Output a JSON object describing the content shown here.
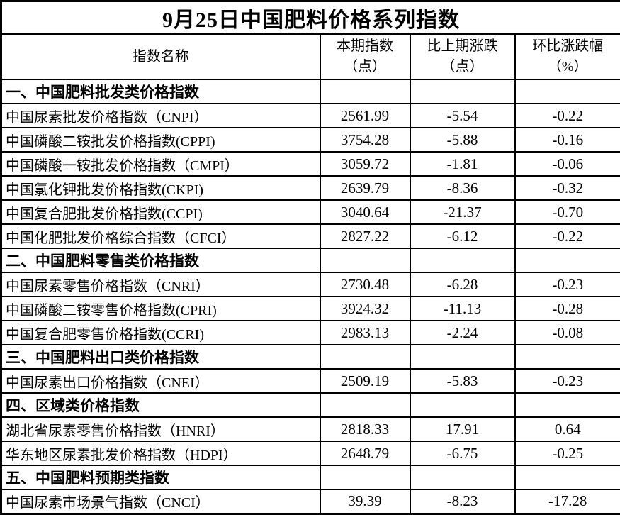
{
  "chart_data": {
    "type": "table",
    "title": "9月25日中国肥料价格系列指数",
    "columns": [
      {
        "label": "指数名称",
        "sub": ""
      },
      {
        "label": "本期指数",
        "sub": "（点）"
      },
      {
        "label": "比上期涨跌",
        "sub": "（点）"
      },
      {
        "label": "环比涨跌幅",
        "sub": "（%）"
      }
    ],
    "rows": [
      {
        "type": "section",
        "name": "一、中国肥料批发类价格指数",
        "current": "",
        "change": "",
        "pct": ""
      },
      {
        "type": "data",
        "name": "中国尿素批发价格指数（CNPI）",
        "current": "2561.99",
        "change": "-5.54",
        "pct": "-0.22"
      },
      {
        "type": "data",
        "name": "中国磷酸二铵批发价格指数(CPPI)",
        "current": "3754.28",
        "change": "-5.88",
        "pct": "-0.16"
      },
      {
        "type": "data",
        "name": "中国磷酸一铵批发价格指数（CMPI）",
        "current": "3059.72",
        "change": "-1.81",
        "pct": "-0.06"
      },
      {
        "type": "data",
        "name": "中国氯化钾批发价格指数(CKPI)",
        "current": "2639.79",
        "change": "-8.36",
        "pct": "-0.32"
      },
      {
        "type": "data",
        "name": "中国复合肥批发价格指数(CCPI)",
        "current": "3040.64",
        "change": "-21.37",
        "pct": "-0.70"
      },
      {
        "type": "data",
        "name": "中国化肥批发价格综合指数（CFCI）",
        "current": "2827.22",
        "change": "-6.12",
        "pct": "-0.22"
      },
      {
        "type": "section",
        "name": "二、中国肥料零售类价格指数",
        "current": "",
        "change": "",
        "pct": ""
      },
      {
        "type": "data",
        "name": "中国尿素零售价格指数（CNRI）",
        "current": "2730.48",
        "change": "-6.28",
        "pct": "-0.23"
      },
      {
        "type": "data",
        "name": "中国磷酸二铵零售价格指数(CPRI)",
        "current": "3924.32",
        "change": "-11.13",
        "pct": "-0.28"
      },
      {
        "type": "data",
        "name": "中国复合肥零售价格指数(CCRI)",
        "current": "2983.13",
        "change": "-2.24",
        "pct": "-0.08"
      },
      {
        "type": "section",
        "name": "三、中国肥料出口类价格指数",
        "current": "",
        "change": "",
        "pct": ""
      },
      {
        "type": "data",
        "name": "中国尿素出口价格指数（CNEI）",
        "current": "2509.19",
        "change": "-5.83",
        "pct": "-0.23"
      },
      {
        "type": "section",
        "name": "四、区域类价格指数",
        "current": "",
        "change": "",
        "pct": ""
      },
      {
        "type": "data",
        "name": "湖北省尿素零售价格指数（HNRI）",
        "current": "2818.33",
        "change": "17.91",
        "pct": "0.64"
      },
      {
        "type": "data",
        "name": "华东地区尿素批发价格指数（HDPI）",
        "current": "2648.79",
        "change": "-6.75",
        "pct": "-0.25"
      },
      {
        "type": "section",
        "name": "五、中国肥料预期类指数",
        "current": "",
        "change": "",
        "pct": ""
      },
      {
        "type": "data",
        "name": "中国尿素市场景气指数（CNCI）",
        "current": "39.39",
        "change": "-8.23",
        "pct": "-17.28"
      }
    ]
  }
}
